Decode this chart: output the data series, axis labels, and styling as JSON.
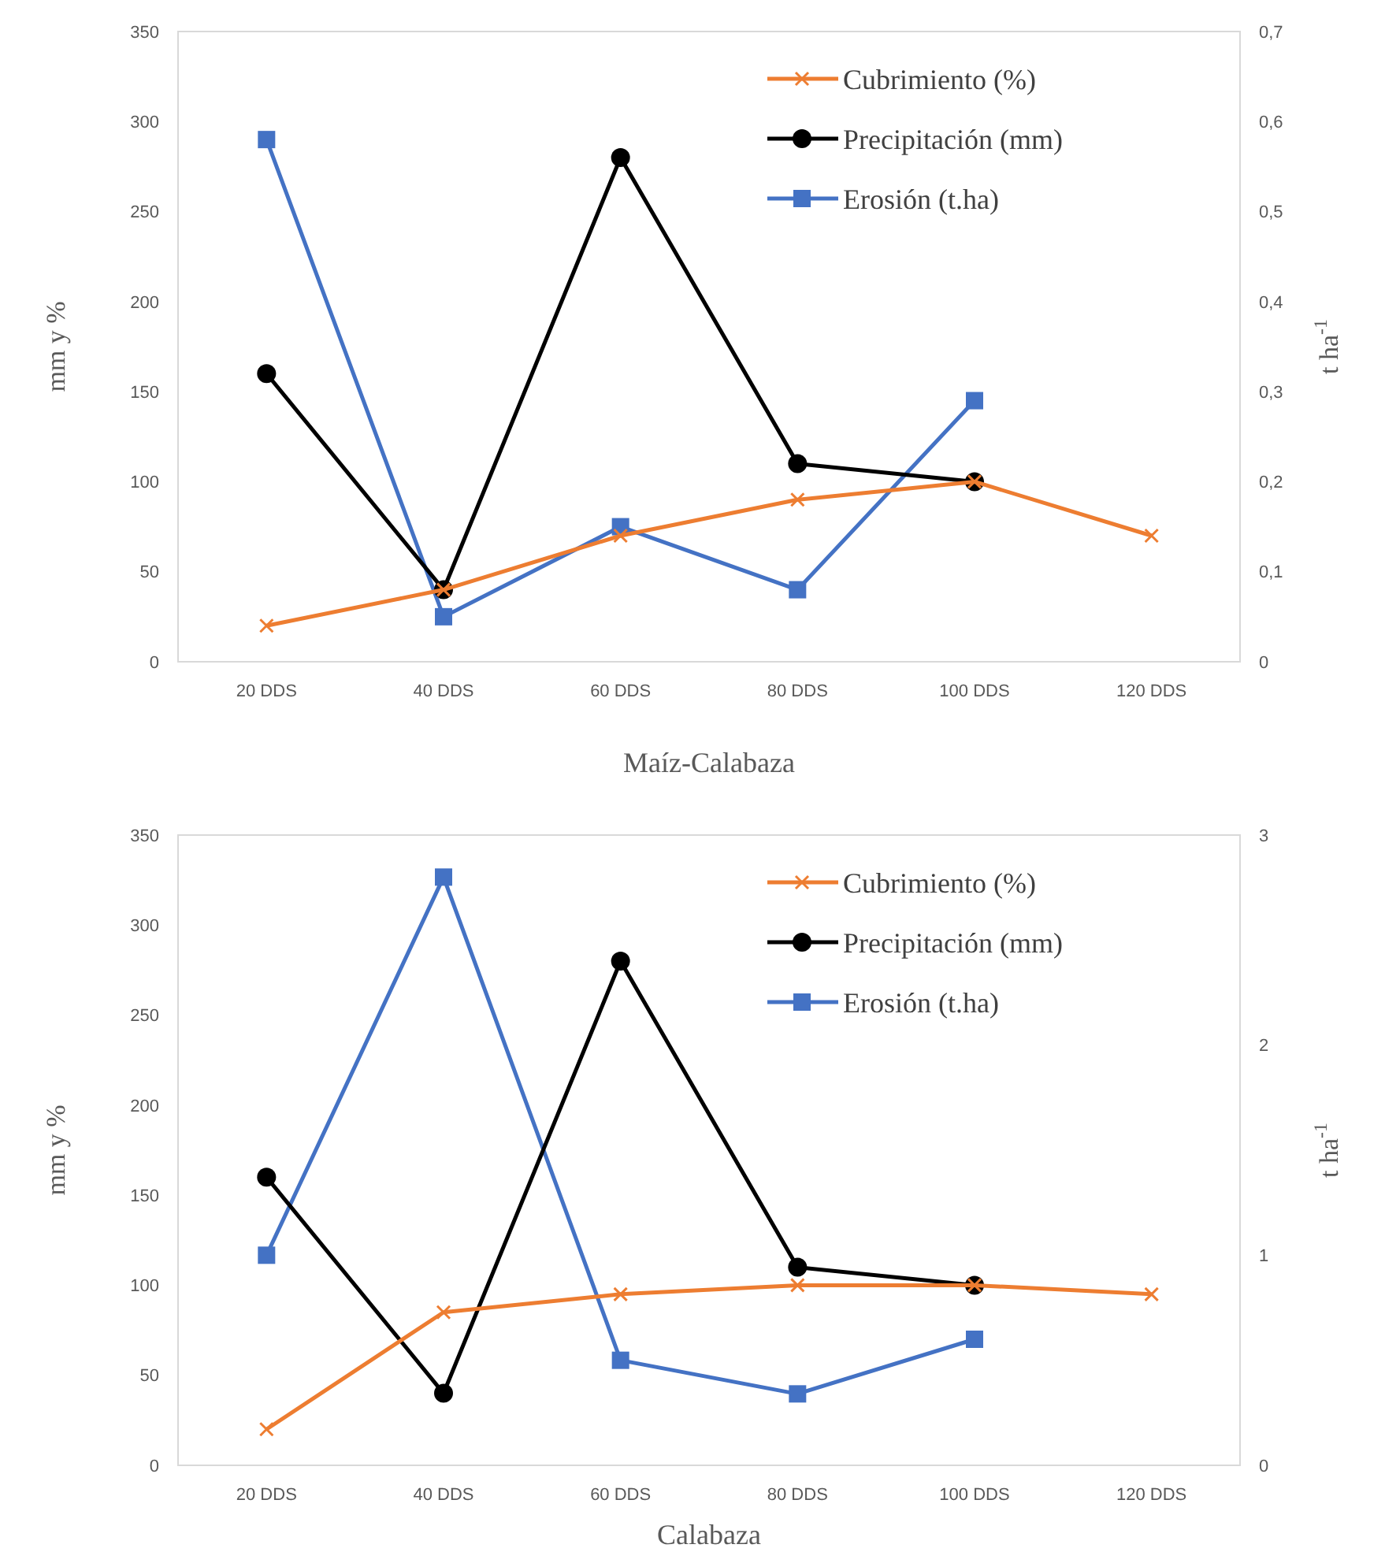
{
  "chart_data": [
    {
      "type": "line",
      "xlabel": "Maíz-Calabaza",
      "ylabel": "mm y %",
      "y2label": "t ha$^{-1}$",
      "categories": [
        "20 DDS",
        "40 DDS",
        "60 DDS",
        "80 DDS",
        "100 DDS",
        "120 DDS"
      ],
      "series": [
        {
          "name": "Cubrimiento (%)",
          "color": "#ed7d31",
          "marker": "cross",
          "values": [
            20,
            40,
            70,
            90,
            100,
            70
          ]
        },
        {
          "name": "Precipitación (mm)",
          "color": "#000000",
          "marker": "circle",
          "values": [
            160,
            40,
            280,
            110,
            100,
            null
          ]
        },
        {
          "name": "Erosión (t.ha)",
          "color": "#4472c4",
          "marker": "square",
          "axis": "y2",
          "values": [
            0.58,
            0.05,
            0.15,
            0.08,
            0.29,
            null
          ]
        }
      ],
      "ylim": [
        0,
        350
      ],
      "yticks": [
        0,
        50,
        100,
        150,
        200,
        250,
        300,
        350
      ],
      "y2lim": [
        0,
        0.7
      ],
      "y2ticks": [
        0,
        {
          "value": 0.1,
          "label": "0,1"
        },
        {
          "value": 0.2,
          "label": "0,2"
        },
        {
          "value": 0.3,
          "label": "0,3"
        },
        {
          "value": 0.4,
          "label": "0,4"
        },
        {
          "value": 0.5,
          "label": "0,5"
        },
        {
          "value": 0.6,
          "label": "0,6"
        },
        {
          "value": 0.7,
          "label": "0,7"
        }
      ],
      "legend": "top right",
      "grid": false,
      "line_style": "solid"
    },
    {
      "type": "line",
      "xlabel": "Calabaza",
      "ylabel": "mm y %",
      "y2label": "t ha$^{-1}$",
      "categories": [
        "20 DDS",
        "40 DDS",
        "60 DDS",
        "80 DDS",
        "100 DDS",
        "120 DDS"
      ],
      "series": [
        {
          "name": "Cubrimiento (%)",
          "color": "#ed7d31",
          "marker": "cross",
          "values": [
            20,
            85,
            95,
            100,
            100,
            95
          ]
        },
        {
          "name": "Precipitación (mm)",
          "color": "#000000",
          "marker": "circle",
          "values": [
            160,
            40,
            280,
            110,
            100,
            null
          ]
        },
        {
          "name": "Erosión (t.ha)",
          "color": "#4472c4",
          "marker": "square",
          "axis": "y2",
          "values": [
            1.0,
            2.8,
            0.5,
            0.34,
            0.6,
            null
          ]
        }
      ],
      "ylim": [
        0,
        350
      ],
      "yticks": [
        0,
        50,
        100,
        150,
        200,
        250,
        300,
        350
      ],
      "y2lim": [
        0,
        3
      ],
      "y2ticks": [
        0,
        1,
        2,
        3
      ],
      "legend": "top right",
      "grid": false,
      "line_style": "solid"
    }
  ]
}
